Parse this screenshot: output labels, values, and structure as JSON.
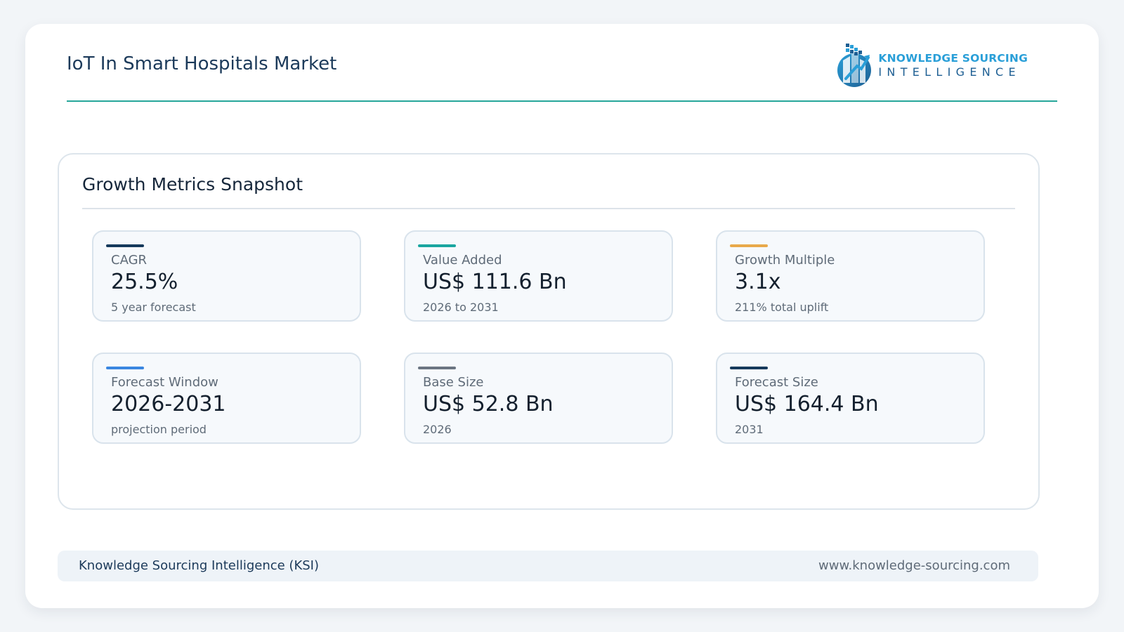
{
  "header": {
    "title": "IoT In Smart Hospitals Market",
    "logo": {
      "line1": "KNOWLEDGE SOURCING",
      "line2": "INTELLIGENCE",
      "colors": {
        "primary": "#2a9fd8",
        "secondary": "#1e5f93"
      }
    },
    "rule_color": "#26a69a"
  },
  "panel": {
    "title": "Growth Metrics Snapshot",
    "metrics": [
      {
        "label": "CAGR",
        "value": "25.5%",
        "sub": "5 year forecast",
        "accent": "#163a5c"
      },
      {
        "label": "Value Added",
        "value": "US$ 111.6 Bn",
        "sub": "2026 to 2031",
        "accent": "#1aa6a0"
      },
      {
        "label": "Growth Multiple",
        "value": "3.1x",
        "sub": "211% total uplift",
        "accent": "#e8a94a"
      },
      {
        "label": "Forecast Window",
        "value": "2026-2031",
        "sub": "projection period",
        "accent": "#3a86e0"
      },
      {
        "label": "Base Size",
        "value": "US$ 52.8 Bn",
        "sub": "2026",
        "accent": "#6b7582"
      },
      {
        "label": "Forecast Size",
        "value": "US$ 164.4 Bn",
        "sub": "2031",
        "accent": "#163a5c"
      }
    ]
  },
  "footer": {
    "left": "Knowledge Sourcing Intelligence (KSI)",
    "right": "www.knowledge-sourcing.com"
  }
}
